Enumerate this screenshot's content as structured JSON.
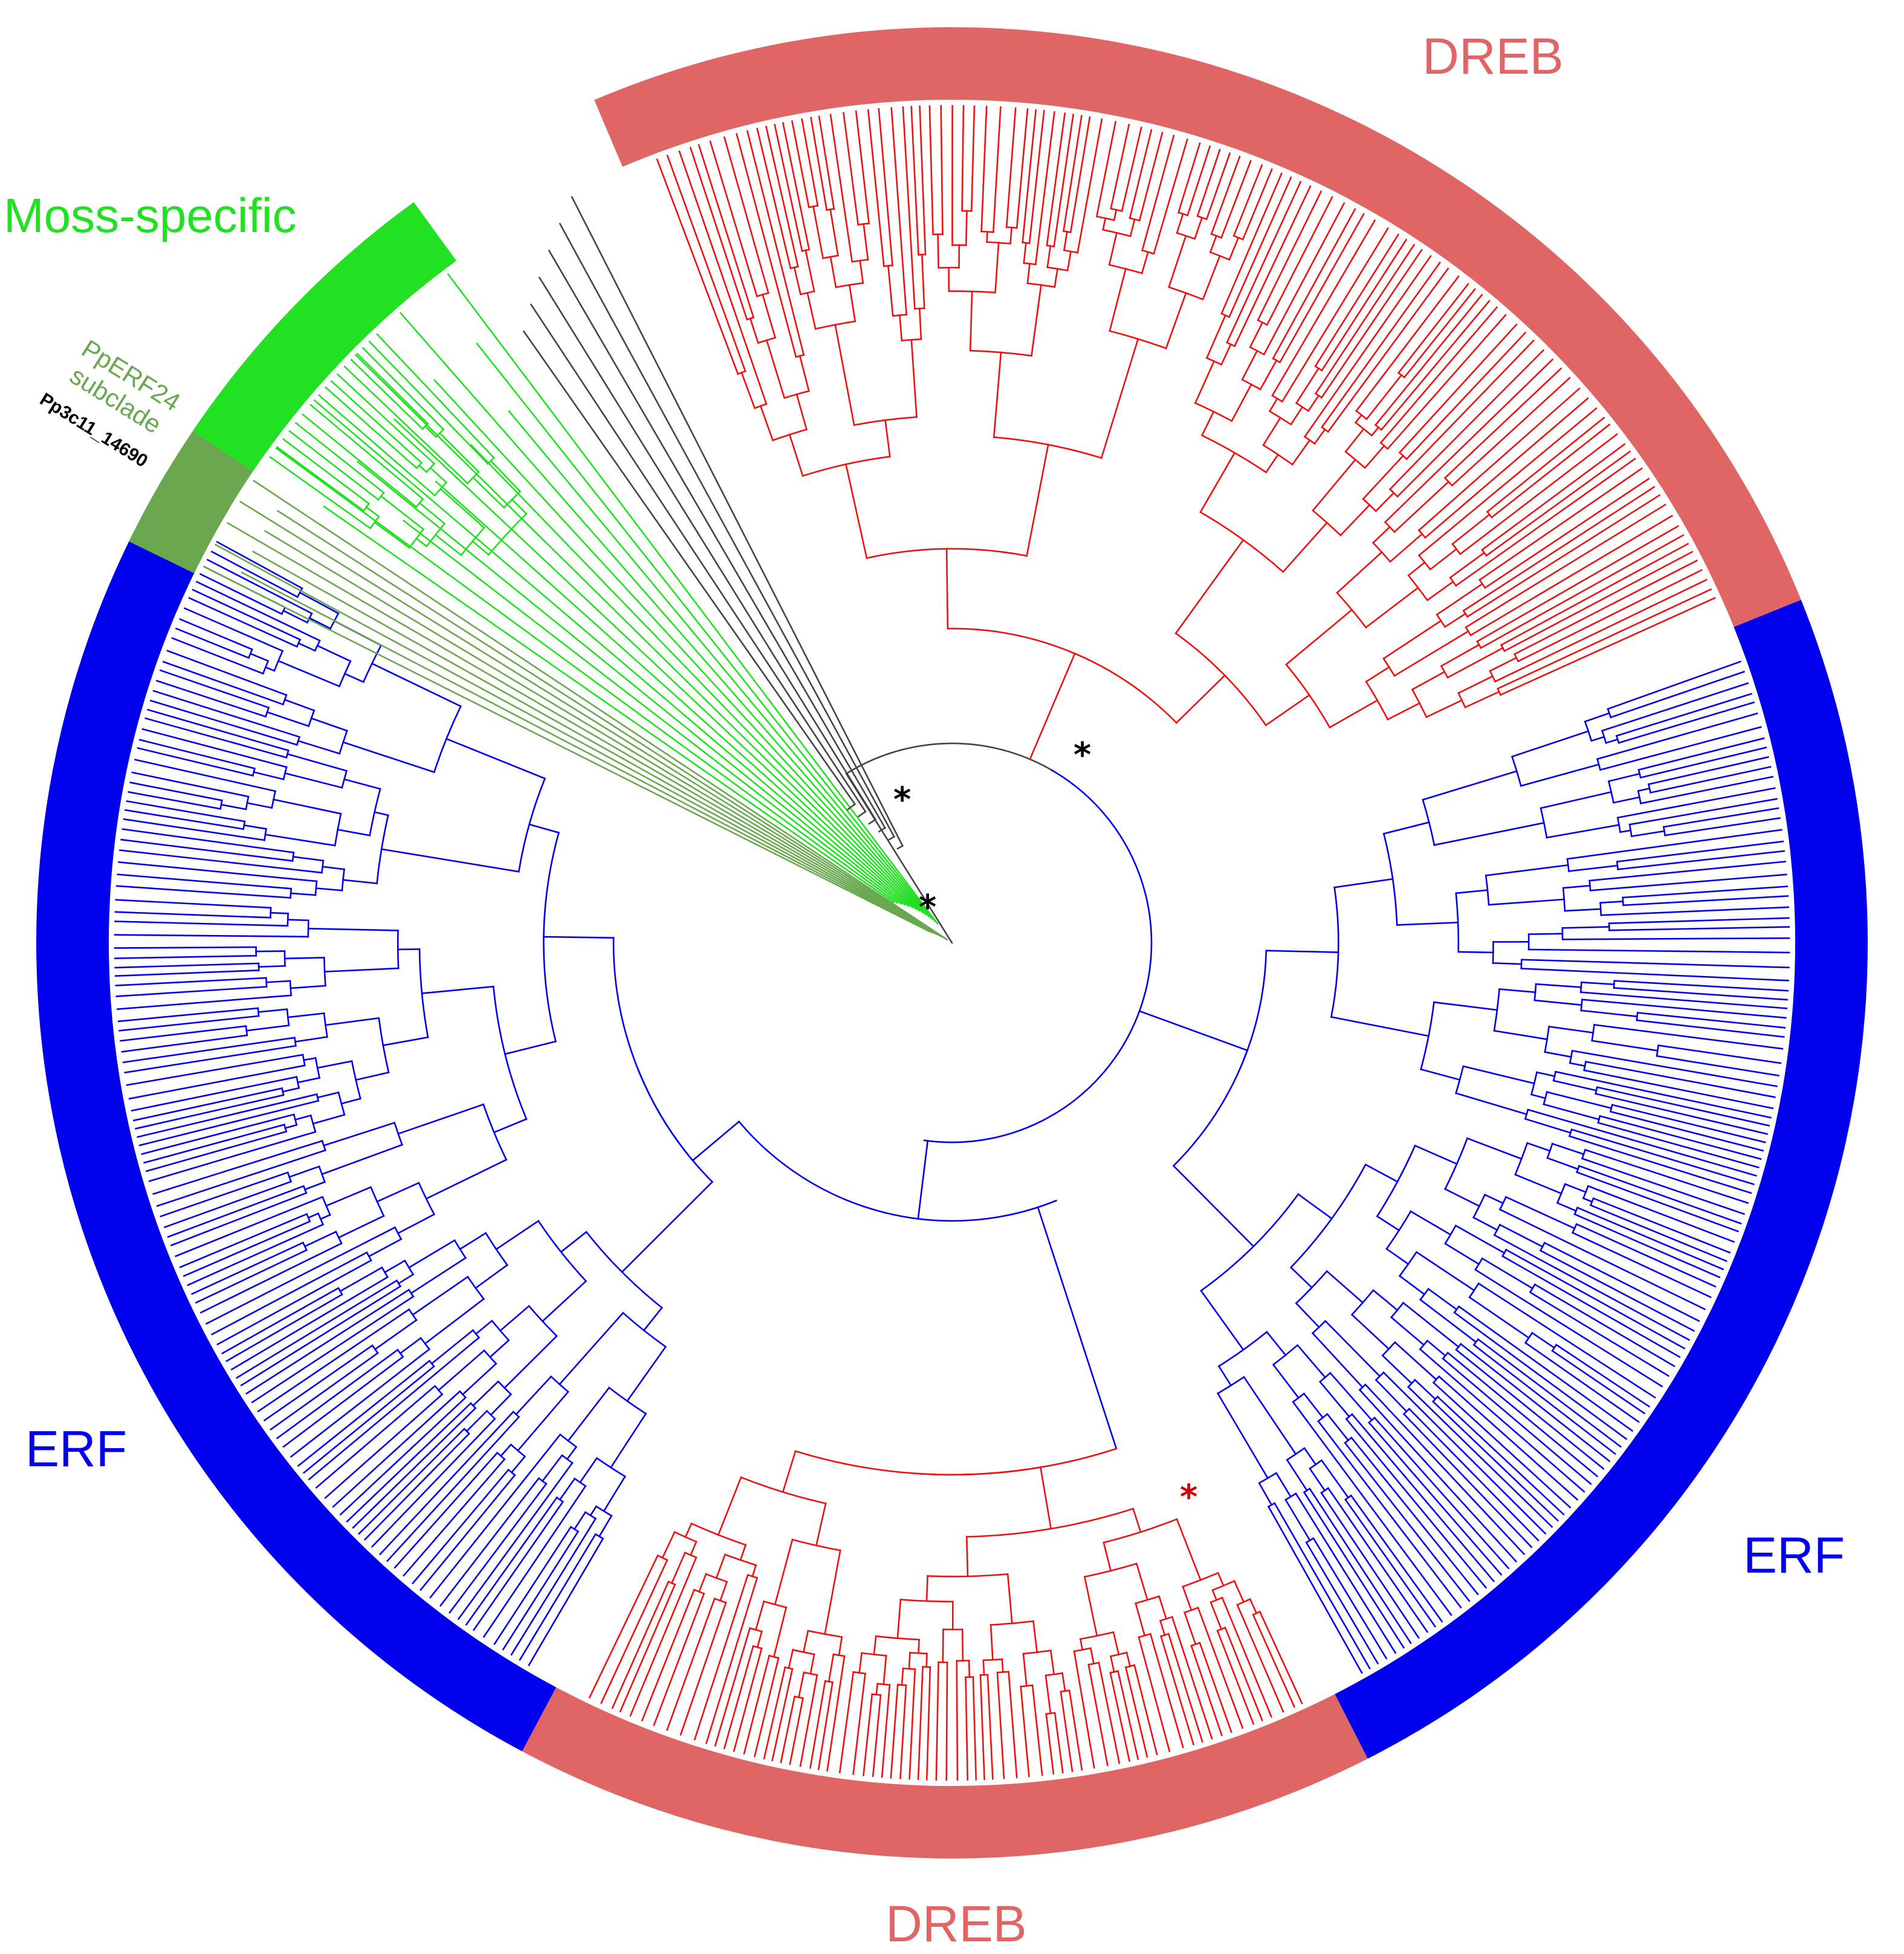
{
  "figure": {
    "labels": {
      "dreb_top": "DREB",
      "dreb_bottom": "DREB",
      "erf_left": "ERF",
      "erf_right": "ERF",
      "moss_specific": "Moss-specific",
      "pperf24_line1": "PpERF24",
      "pperf24_line2": "subclade",
      "gene_id": "Pp3c11_14690"
    },
    "asterisks": [
      "*",
      "*",
      "*",
      "*"
    ],
    "clades": [
      {
        "name": "DREB",
        "color": "#e06666",
        "kind": "ring"
      },
      {
        "name": "ERF",
        "color": "#0000ee",
        "kind": "ring"
      },
      {
        "name": "Moss-specific",
        "color": "#22e022",
        "kind": "ring"
      },
      {
        "name": "PpERF24 subclade",
        "color": "#6aa84f",
        "kind": "ring"
      }
    ],
    "colors": {
      "dreb_ring": "#e06666",
      "dreb_branch": "#ee1111",
      "erf": "#0000ee",
      "moss": "#22e022",
      "pperf24": "#6aa84f",
      "basal": "#444444",
      "asterisk_black": "#000000",
      "asterisk_red": "#cc0000"
    }
  }
}
